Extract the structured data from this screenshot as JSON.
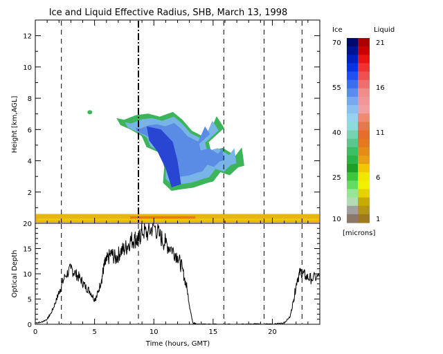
{
  "title": "Ice and Liquid Effective Radius, SHB, March 13, 1998",
  "chart_data": [
    {
      "type": "heatmap",
      "title": "Ice and Liquid Effective Radius, SHB, March 13, 1998",
      "xlabel": "",
      "ylabel": "Height [km,AGL]",
      "xlim": [
        0,
        24
      ],
      "ylim": [
        0,
        13
      ],
      "yticks": [
        2,
        4,
        6,
        8,
        10,
        12
      ],
      "vertical_dashed_lines_hours": [
        2.2,
        8.7,
        15.9,
        19.3,
        22.5
      ],
      "liquid_layer": {
        "x_start": 0,
        "x_end": 24,
        "top_km": 0.6
      },
      "ice_cloud_outline": [
        [
          6.9,
          6.7
        ],
        [
          7.5,
          6.6
        ],
        [
          8.5,
          6.9
        ],
        [
          9.5,
          7.0
        ],
        [
          10.5,
          6.8
        ],
        [
          11.6,
          7.1
        ],
        [
          12.4,
          6.6
        ],
        [
          13.2,
          5.9
        ],
        [
          14.5,
          5.4
        ],
        [
          15.3,
          6.8
        ],
        [
          15.9,
          6.1
        ],
        [
          14.6,
          5.2
        ],
        [
          14.8,
          4.6
        ],
        [
          15.8,
          4.8
        ],
        [
          16.9,
          4.3
        ],
        [
          17.4,
          4.8
        ],
        [
          17.6,
          3.7
        ],
        [
          17.1,
          3.6
        ],
        [
          16.4,
          3.1
        ],
        [
          15.6,
          3.3
        ],
        [
          15.0,
          2.7
        ],
        [
          14.5,
          2.6
        ],
        [
          13.3,
          2.3
        ],
        [
          12.3,
          2.2
        ],
        [
          11.5,
          2.1
        ],
        [
          10.8,
          2.6
        ],
        [
          10.9,
          3.6
        ],
        [
          10.6,
          4.5
        ],
        [
          9.4,
          4.9
        ],
        [
          9.0,
          5.6
        ],
        [
          8.1,
          6.0
        ],
        [
          7.2,
          6.3
        ]
      ],
      "ice_core_outline": [
        [
          9.4,
          6.2
        ],
        [
          10.6,
          6.0
        ],
        [
          11.6,
          5.2
        ],
        [
          12.0,
          4.0
        ],
        [
          12.3,
          2.5
        ],
        [
          11.5,
          2.3
        ],
        [
          11.0,
          3.5
        ],
        [
          10.3,
          4.6
        ],
        [
          9.6,
          5.3
        ]
      ]
    },
    {
      "type": "line",
      "xlabel": "Time (hours, GMT)",
      "ylabel": "Optical Depth",
      "xlim": [
        0,
        24
      ],
      "ylim": [
        0,
        20
      ],
      "xticks": [
        0,
        5,
        10,
        15,
        20
      ],
      "yticks": [
        0,
        5,
        10,
        15,
        20
      ],
      "vertical_dashed_lines_hours": [
        2.2,
        8.7,
        15.9,
        19.3,
        22.5
      ],
      "series": [
        {
          "x": [
            0.0,
            0.5,
            1.0,
            1.4,
            1.8,
            2.1,
            2.5,
            3.0,
            3.4,
            3.8,
            4.2,
            4.6,
            5.0,
            5.2,
            5.6,
            5.8,
            6.0,
            6.4,
            6.8,
            7.2,
            7.6,
            8.0,
            8.4,
            8.7,
            9.0,
            9.5,
            10.0,
            10.5,
            11.0,
            11.5,
            12.0,
            12.4,
            12.8,
            13.1,
            13.3,
            13.6,
            14.0,
            16.0,
            18.0,
            20.0,
            21.0,
            21.5,
            21.8,
            22.1,
            22.4,
            22.8,
            23.3,
            24.0
          ],
          "y": [
            0.3,
            0.4,
            1.0,
            2.5,
            5.0,
            7.0,
            9.5,
            11.0,
            10.0,
            9.0,
            7.5,
            6.5,
            5.0,
            5.5,
            9.0,
            11.5,
            12.5,
            14.0,
            13.0,
            14.5,
            15.0,
            16.5,
            17.0,
            16.5,
            18.5,
            18.0,
            19.5,
            17.5,
            16.0,
            15.0,
            13.5,
            11.0,
            7.0,
            2.5,
            0.3,
            0.0,
            0.0,
            0.0,
            0.0,
            0.0,
            0.3,
            1.5,
            5.0,
            9.0,
            10.5,
            9.5,
            9.0,
            9.5
          ]
        }
      ]
    }
  ],
  "colorbar": {
    "ice_header": "Ice",
    "liquid_header": "Liquid",
    "units": "[microns]",
    "ice_labels": [
      "70",
      "55",
      "40",
      "25",
      "10"
    ],
    "liquid_labels": [
      "21",
      "16",
      "11",
      "6",
      "1"
    ],
    "ice_colors": [
      "#000a6e",
      "#001296",
      "#0020c0",
      "#0a32e0",
      "#2050f0",
      "#3c6ef0",
      "#5a8cf0",
      "#78a8f0",
      "#8cc0f0",
      "#96d2f0",
      "#8cdcdc",
      "#78d2b4",
      "#5ac88c",
      "#3cbe64",
      "#28b446",
      "#1ea028",
      "#3cc83c",
      "#64dc64",
      "#96e696",
      "#b4dcb4",
      "#a0a0a0",
      "#8c7868"
    ],
    "liquid_colors": [
      "#aa0000",
      "#c80000",
      "#e61414",
      "#f03232",
      "#f05050",
      "#f06e6e",
      "#f08c8c",
      "#f09696",
      "#f0a0a0",
      "#f08a70",
      "#e67850",
      "#e66e28",
      "#e6781e",
      "#e68c14",
      "#e6a014",
      "#f0c800",
      "#f0e600",
      "#f0f000",
      "#e6d200",
      "#c8aa00",
      "#b49614",
      "#a0781e"
    ],
    "ice_tick_colors": [
      "#0a1a7a",
      "#4a70d0",
      "#68b8d8",
      "#3cbe5a",
      "#8c7464"
    ],
    "liquid_tick_colors": [
      "#b00000",
      "#f08080",
      "#e67030",
      "#f0d800",
      "#aa8010"
    ]
  }
}
